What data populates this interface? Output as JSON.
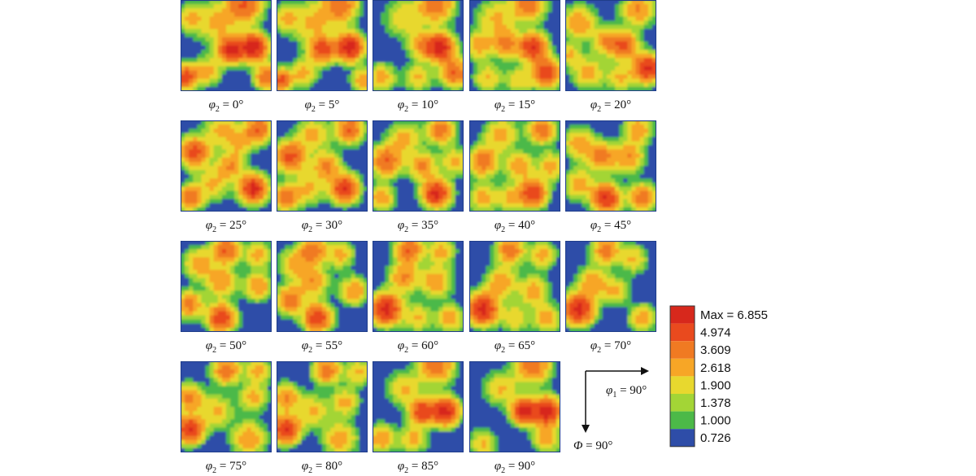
{
  "chart_data": {
    "type": "heatmap",
    "description_label": "",
    "section_variable": "φ2",
    "section_unit": "°",
    "sections": [
      {
        "label": "φ2 = 0°",
        "sub": "2",
        "angle": 0,
        "peaks": [
          [
            0.55,
            0.55,
            0.09,
            7.0
          ],
          [
            0.8,
            0.52,
            0.1,
            7.5
          ],
          [
            0.7,
            0.05,
            0.13,
            4.5
          ],
          [
            0.05,
            0.85,
            0.09,
            5.5
          ],
          [
            0.95,
            0.85,
            0.09,
            4.5
          ],
          [
            0.3,
            0.78,
            0.1,
            2.4
          ],
          [
            0.4,
            0.25,
            0.16,
            2.2
          ],
          [
            0.1,
            0.2,
            0.1,
            2.0
          ]
        ]
      },
      {
        "label": "φ2 = 5°",
        "sub": "2",
        "angle": 5,
        "peaks": [
          [
            0.5,
            0.55,
            0.09,
            5.5
          ],
          [
            0.8,
            0.52,
            0.1,
            7.5
          ],
          [
            0.7,
            0.05,
            0.13,
            4.0
          ],
          [
            0.05,
            0.88,
            0.08,
            5.0
          ],
          [
            0.3,
            0.8,
            0.1,
            2.4
          ],
          [
            0.4,
            0.25,
            0.16,
            2.2
          ],
          [
            0.95,
            0.88,
            0.08,
            3.0
          ],
          [
            0.1,
            0.2,
            0.1,
            2.0
          ]
        ]
      },
      {
        "label": "φ2 = 10°",
        "sub": "2",
        "angle": 10,
        "peaks": [
          [
            0.75,
            0.52,
            0.1,
            7.0
          ],
          [
            0.55,
            0.5,
            0.1,
            3.0
          ],
          [
            0.7,
            0.05,
            0.13,
            4.0
          ],
          [
            0.1,
            0.85,
            0.1,
            2.6
          ],
          [
            0.9,
            0.8,
            0.1,
            4.5
          ],
          [
            0.35,
            0.2,
            0.14,
            2.0
          ],
          [
            0.5,
            0.85,
            0.1,
            2.2
          ]
        ]
      },
      {
        "label": "φ2 = 15°",
        "sub": "2",
        "angle": 15,
        "peaks": [
          [
            0.7,
            0.52,
            0.1,
            6.5
          ],
          [
            0.4,
            0.48,
            0.1,
            3.5
          ],
          [
            0.85,
            0.8,
            0.1,
            6.0
          ],
          [
            0.65,
            0.05,
            0.12,
            4.0
          ],
          [
            0.1,
            0.5,
            0.1,
            2.6
          ],
          [
            0.3,
            0.2,
            0.14,
            2.2
          ],
          [
            0.2,
            0.85,
            0.1,
            2.2
          ],
          [
            0.55,
            0.88,
            0.1,
            2.0
          ]
        ]
      },
      {
        "label": "φ2 = 20°",
        "sub": "2",
        "angle": 20,
        "peaks": [
          [
            0.65,
            0.5,
            0.1,
            4.5
          ],
          [
            0.9,
            0.75,
            0.1,
            7.0
          ],
          [
            0.15,
            0.25,
            0.12,
            3.0
          ],
          [
            0.45,
            0.45,
            0.1,
            2.8
          ],
          [
            0.8,
            0.1,
            0.12,
            3.2
          ],
          [
            0.25,
            0.8,
            0.12,
            2.4
          ],
          [
            0.6,
            0.85,
            0.1,
            2.2
          ],
          [
            0.05,
            0.6,
            0.08,
            2.2
          ]
        ]
      },
      {
        "label": "φ2 = 25°",
        "sub": "2",
        "angle": 25,
        "peaks": [
          [
            0.8,
            0.75,
            0.1,
            7.0
          ],
          [
            0.15,
            0.35,
            0.11,
            5.0
          ],
          [
            0.85,
            0.1,
            0.1,
            4.5
          ],
          [
            0.55,
            0.5,
            0.1,
            3.0
          ],
          [
            0.1,
            0.85,
            0.09,
            4.0
          ],
          [
            0.45,
            0.1,
            0.12,
            2.4
          ],
          [
            0.35,
            0.7,
            0.12,
            2.2
          ],
          [
            0.65,
            0.25,
            0.1,
            2.0
          ]
        ]
      },
      {
        "label": "φ2 = 30°",
        "sub": "2",
        "angle": 30,
        "peaks": [
          [
            0.75,
            0.75,
            0.1,
            6.5
          ],
          [
            0.15,
            0.4,
            0.11,
            5.0
          ],
          [
            0.8,
            0.1,
            0.1,
            4.5
          ],
          [
            0.55,
            0.5,
            0.1,
            3.5
          ],
          [
            0.1,
            0.85,
            0.09,
            4.0
          ],
          [
            0.4,
            0.15,
            0.12,
            2.4
          ],
          [
            0.35,
            0.75,
            0.12,
            2.2
          ]
        ]
      },
      {
        "label": "φ2 = 35°",
        "sub": "2",
        "angle": 35,
        "peaks": [
          [
            0.7,
            0.8,
            0.1,
            7.0
          ],
          [
            0.15,
            0.45,
            0.11,
            4.5
          ],
          [
            0.75,
            0.1,
            0.1,
            4.0
          ],
          [
            0.55,
            0.5,
            0.1,
            3.2
          ],
          [
            0.1,
            0.85,
            0.09,
            3.0
          ],
          [
            0.35,
            0.2,
            0.12,
            2.4
          ],
          [
            0.9,
            0.45,
            0.1,
            2.4
          ]
        ]
      },
      {
        "label": "φ2 = 40°",
        "sub": "2",
        "angle": 40,
        "peaks": [
          [
            0.7,
            0.8,
            0.1,
            6.0
          ],
          [
            0.15,
            0.45,
            0.11,
            4.0
          ],
          [
            0.8,
            0.1,
            0.1,
            4.0
          ],
          [
            0.55,
            0.5,
            0.1,
            3.0
          ],
          [
            0.35,
            0.15,
            0.12,
            2.6
          ],
          [
            0.9,
            0.5,
            0.1,
            2.6
          ],
          [
            0.15,
            0.85,
            0.1,
            2.6
          ],
          [
            0.45,
            0.85,
            0.1,
            2.2
          ]
        ]
      },
      {
        "label": "φ2 = 45°",
        "sub": "2",
        "angle": 45,
        "peaks": [
          [
            0.45,
            0.85,
            0.1,
            6.5
          ],
          [
            0.85,
            0.85,
            0.1,
            4.0
          ],
          [
            0.4,
            0.4,
            0.11,
            3.5
          ],
          [
            0.7,
            0.4,
            0.11,
            3.0
          ],
          [
            0.15,
            0.25,
            0.11,
            2.8
          ],
          [
            0.8,
            0.1,
            0.1,
            3.0
          ],
          [
            0.15,
            0.7,
            0.11,
            2.6
          ]
        ]
      },
      {
        "label": "φ2 = 50°",
        "sub": "2",
        "angle": 50,
        "peaks": [
          [
            0.45,
            0.85,
            0.1,
            6.0
          ],
          [
            0.1,
            0.7,
            0.1,
            3.5
          ],
          [
            0.5,
            0.1,
            0.1,
            4.5
          ],
          [
            0.45,
            0.45,
            0.11,
            3.0
          ],
          [
            0.85,
            0.5,
            0.1,
            3.0
          ],
          [
            0.2,
            0.25,
            0.11,
            2.8
          ],
          [
            0.85,
            0.15,
            0.1,
            2.4
          ]
        ]
      },
      {
        "label": "φ2 = 55°",
        "sub": "2",
        "angle": 55,
        "peaks": [
          [
            0.45,
            0.85,
            0.1,
            6.0
          ],
          [
            0.15,
            0.65,
            0.1,
            4.0
          ],
          [
            0.4,
            0.1,
            0.1,
            4.0
          ],
          [
            0.4,
            0.45,
            0.11,
            3.0
          ],
          [
            0.85,
            0.55,
            0.1,
            3.0
          ],
          [
            0.7,
            0.15,
            0.1,
            2.4
          ],
          [
            0.2,
            0.25,
            0.11,
            2.4
          ]
        ]
      },
      {
        "label": "φ2 = 60°",
        "sub": "2",
        "angle": 60,
        "peaks": [
          [
            0.15,
            0.75,
            0.11,
            7.0
          ],
          [
            0.4,
            0.1,
            0.1,
            4.5
          ],
          [
            0.35,
            0.4,
            0.11,
            3.2
          ],
          [
            0.7,
            0.45,
            0.11,
            3.0
          ],
          [
            0.85,
            0.85,
            0.1,
            2.8
          ],
          [
            0.75,
            0.12,
            0.1,
            2.4
          ],
          [
            0.5,
            0.85,
            0.1,
            2.2
          ]
        ]
      },
      {
        "label": "φ2 = 65°",
        "sub": "2",
        "angle": 65,
        "peaks": [
          [
            0.15,
            0.75,
            0.11,
            7.0
          ],
          [
            0.45,
            0.1,
            0.1,
            4.0
          ],
          [
            0.35,
            0.45,
            0.11,
            3.0
          ],
          [
            0.7,
            0.55,
            0.11,
            2.6
          ],
          [
            0.85,
            0.85,
            0.1,
            2.8
          ],
          [
            0.8,
            0.15,
            0.1,
            2.4
          ],
          [
            0.5,
            0.85,
            0.1,
            2.0
          ]
        ]
      },
      {
        "label": "φ2 = 70°",
        "sub": "2",
        "angle": 70,
        "peaks": [
          [
            0.15,
            0.75,
            0.11,
            7.0
          ],
          [
            0.45,
            0.1,
            0.1,
            3.8
          ],
          [
            0.3,
            0.45,
            0.11,
            2.8
          ],
          [
            0.85,
            0.85,
            0.1,
            2.6
          ],
          [
            0.75,
            0.2,
            0.1,
            2.2
          ],
          [
            0.55,
            0.55,
            0.1,
            2.2
          ]
        ]
      },
      {
        "label": "φ2 = 75°",
        "sub": "2",
        "angle": 75,
        "peaks": [
          [
            0.1,
            0.75,
            0.1,
            6.5
          ],
          [
            0.5,
            0.1,
            0.1,
            4.0
          ],
          [
            0.1,
            0.4,
            0.1,
            3.5
          ],
          [
            0.8,
            0.4,
            0.1,
            2.4
          ],
          [
            0.75,
            0.85,
            0.12,
            3.0
          ],
          [
            0.4,
            0.55,
            0.12,
            2.2
          ],
          [
            0.85,
            0.1,
            0.1,
            2.4
          ]
        ]
      },
      {
        "label": "φ2 = 80°",
        "sub": "2",
        "angle": 80,
        "peaks": [
          [
            0.1,
            0.75,
            0.1,
            6.5
          ],
          [
            0.55,
            0.1,
            0.1,
            3.8
          ],
          [
            0.1,
            0.4,
            0.1,
            3.2
          ],
          [
            0.75,
            0.45,
            0.1,
            2.4
          ],
          [
            0.7,
            0.85,
            0.12,
            2.8
          ],
          [
            0.4,
            0.55,
            0.12,
            2.2
          ],
          [
            0.9,
            0.12,
            0.1,
            2.2
          ]
        ]
      },
      {
        "label": "φ2 = 85°",
        "sub": "2",
        "angle": 85,
        "peaks": [
          [
            0.55,
            0.55,
            0.09,
            6.0
          ],
          [
            0.8,
            0.55,
            0.1,
            7.0
          ],
          [
            0.7,
            0.05,
            0.13,
            4.0
          ],
          [
            0.1,
            0.85,
            0.1,
            3.0
          ],
          [
            0.35,
            0.3,
            0.12,
            2.2
          ],
          [
            0.45,
            0.85,
            0.1,
            2.4
          ]
        ]
      },
      {
        "label": "φ2 = 90°",
        "sub": "2",
        "angle": 90,
        "peaks": [
          [
            0.6,
            0.55,
            0.09,
            7.0
          ],
          [
            0.85,
            0.55,
            0.1,
            7.5
          ],
          [
            0.7,
            0.05,
            0.13,
            4.0
          ],
          [
            0.35,
            0.3,
            0.12,
            2.2
          ],
          [
            0.85,
            0.85,
            0.1,
            2.6
          ],
          [
            0.15,
            0.9,
            0.1,
            2.2
          ]
        ]
      }
    ],
    "legend": {
      "levels": [
        {
          "label": "Max = 6.855",
          "value": 6.855,
          "color": "#d7281c"
        },
        {
          "label": "4.974",
          "value": 4.974,
          "color": "#e94a1e"
        },
        {
          "label": "3.609",
          "value": 3.609,
          "color": "#f07a22"
        },
        {
          "label": "2.618",
          "value": 2.618,
          "color": "#f7a626"
        },
        {
          "label": "1.900",
          "value": 1.9,
          "color": "#e8d82e"
        },
        {
          "label": "1.378",
          "value": 1.378,
          "color": "#a3d536"
        },
        {
          "label": "1.000",
          "value": 1.0,
          "color": "#4cb948"
        },
        {
          "label": "0.726",
          "value": 0.726,
          "color": "#2e4da8"
        }
      ],
      "placement": "bottom-right"
    },
    "axes": {
      "x_label": "φ1 = 90°",
      "x_sub": "1",
      "x_value": 90,
      "y_label": "Φ = 90°",
      "y_value": 90
    },
    "background_color": "#2e4da8"
  }
}
